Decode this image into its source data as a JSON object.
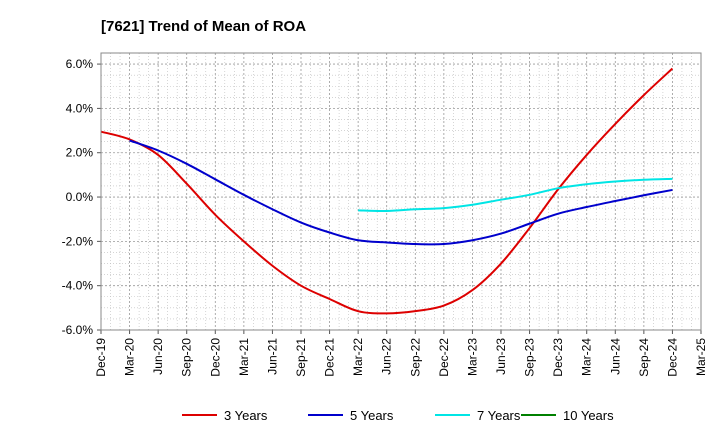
{
  "chart_data": {
    "type": "line",
    "title": "[7621]  Trend of Mean of ROA",
    "xlabel": "",
    "ylabel": "",
    "x": [
      "Dec-19",
      "Mar-20",
      "Jun-20",
      "Sep-20",
      "Dec-20",
      "Mar-21",
      "Jun-21",
      "Sep-21",
      "Dec-21",
      "Mar-22",
      "Jun-22",
      "Sep-22",
      "Dec-22",
      "Mar-23",
      "Jun-23",
      "Sep-23",
      "Dec-23",
      "Mar-24",
      "Jun-24",
      "Sep-24",
      "Dec-24",
      "Mar-25"
    ],
    "y_ticks": [
      "6.0%",
      "4.0%",
      "2.0%",
      "0.0%",
      "-2.0%",
      "-4.0%",
      "-6.0%"
    ],
    "y_tick_values": [
      6,
      4,
      2,
      0,
      -2,
      -4,
      -6
    ],
    "ylim": [
      -6,
      6.5
    ],
    "grid": true,
    "legend_position": "bottom",
    "series": [
      {
        "name": "3 Years",
        "color": "#dd0000",
        "values": [
          2.95,
          2.6,
          1.9,
          0.6,
          -0.8,
          -2.0,
          -3.1,
          -4.0,
          -4.6,
          -5.15,
          -5.25,
          -5.15,
          -4.9,
          -4.2,
          -3.0,
          -1.4,
          0.35,
          1.9,
          3.3,
          4.6,
          5.8,
          null
        ]
      },
      {
        "name": "5 Years",
        "color": "#0000cc",
        "values": [
          null,
          2.55,
          2.1,
          1.5,
          0.8,
          0.1,
          -0.55,
          -1.15,
          -1.6,
          -1.95,
          -2.05,
          -2.12,
          -2.12,
          -1.95,
          -1.65,
          -1.2,
          -0.75,
          -0.45,
          -0.18,
          0.08,
          0.32,
          null
        ]
      },
      {
        "name": "7 Years",
        "color": "#00e5e5",
        "values": [
          null,
          null,
          null,
          null,
          null,
          null,
          null,
          null,
          null,
          -0.6,
          -0.63,
          -0.55,
          -0.5,
          -0.35,
          -0.12,
          0.1,
          0.4,
          0.58,
          0.7,
          0.78,
          0.82,
          null
        ]
      },
      {
        "name": "10 Years",
        "color": "#008000",
        "values": [
          null,
          null,
          null,
          null,
          null,
          null,
          null,
          null,
          null,
          null,
          null,
          null,
          null,
          null,
          null,
          null,
          null,
          null,
          null,
          null,
          null,
          null
        ]
      }
    ]
  }
}
